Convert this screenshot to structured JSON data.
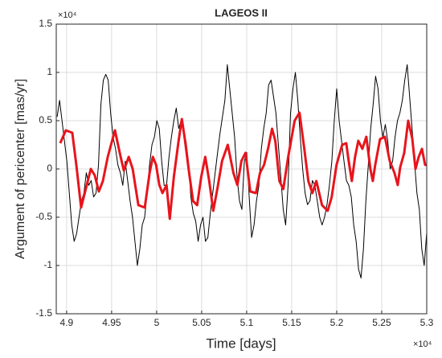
{
  "chart_data": {
    "type": "line",
    "title": "LAGEOS II",
    "x_label": "Time [days]",
    "y_label": "Argument of pericenter  [mas/yr]",
    "x_multiplier": "×10⁴",
    "y_multiplier": "×10⁴",
    "grid": true,
    "xlim": [
      48885,
      53000
    ],
    "ylim": [
      -15000,
      15000
    ],
    "xticks": [
      {
        "value": 49000,
        "label": "4.9"
      },
      {
        "value": 49500,
        "label": "4.95"
      },
      {
        "value": 50000,
        "label": "5"
      },
      {
        "value": 50500,
        "label": "5.05"
      },
      {
        "value": 51000,
        "label": "5.1"
      },
      {
        "value": 51500,
        "label": "5.15"
      },
      {
        "value": 52000,
        "label": "5.2"
      },
      {
        "value": 52500,
        "label": "5.25"
      },
      {
        "value": 53000,
        "label": "5.3"
      }
    ],
    "yticks": [
      {
        "value": -15000,
        "label": "-1.5"
      },
      {
        "value": -10000,
        "label": "-1"
      },
      {
        "value": -5000,
        "label": "-0.5"
      },
      0,
      {
        "value": 5000,
        "label": "0.5"
      },
      {
        "value": 10000,
        "label": "1"
      },
      {
        "value": 15000,
        "label": "1.5"
      }
    ],
    "series": [
      {
        "color": "#000000",
        "width": 1,
        "x": [
          48895,
          48922,
          48949,
          48976,
          49003,
          49030,
          49057,
          49084,
          49111,
          49138,
          49165,
          49192,
          49219,
          49246,
          49273,
          49300,
          49327,
          49354,
          49381,
          49408,
          49435,
          49462,
          49489,
          49516,
          49543,
          49570,
          49597,
          49624,
          49651,
          49678,
          49705,
          49732,
          49759,
          49786,
          49813,
          49840,
          49867,
          49894,
          49921,
          49948,
          49975,
          50002,
          50029,
          50056,
          50083,
          50110,
          50137,
          50164,
          50191,
          50218,
          50245,
          50272,
          50299,
          50326,
          50353,
          50380,
          50407,
          50434,
          50461,
          50488,
          50515,
          50542,
          50569,
          50596,
          50623,
          50650,
          50677,
          50704,
          50731,
          50758,
          50785,
          50812,
          50839,
          50866,
          50893,
          50920,
          50947,
          50974,
          51001,
          51028,
          51055,
          51082,
          51109,
          51136,
          51163,
          51190,
          51217,
          51244,
          51271,
          51298,
          51325,
          51352,
          51379,
          51406,
          51433,
          51460,
          51487,
          51514,
          51541,
          51568,
          51595,
          51622,
          51649,
          51676,
          51703,
          51730,
          51757,
          51784,
          51811,
          51838,
          51865,
          51892,
          51919,
          51946,
          51973,
          52000,
          52027,
          52054,
          52081,
          52108,
          52135,
          52162,
          52189,
          52216,
          52243,
          52270,
          52297,
          52324,
          52351,
          52378,
          52405,
          52432,
          52459,
          52486,
          52513,
          52540,
          52567,
          52594,
          52621,
          52648,
          52675,
          52702,
          52729,
          52756,
          52783,
          52810,
          52837,
          52864,
          52891,
          52918,
          52945,
          52972,
          52999
        ],
        "values": [
          5400,
          7100,
          5000,
          2900,
          800,
          -2500,
          -5800,
          -7500,
          -6700,
          -5000,
          -3300,
          -2500,
          -400,
          -1700,
          -1200,
          -2900,
          -2500,
          400,
          6700,
          9200,
          9800,
          9200,
          5800,
          3300,
          2100,
          400,
          -400,
          -1700,
          800,
          -1200,
          -3300,
          -5000,
          -7500,
          -10000,
          -8300,
          -5800,
          -5000,
          -2500,
          400,
          2500,
          3300,
          5000,
          4200,
          800,
          -1700,
          -1700,
          1200,
          3300,
          5000,
          6300,
          4200,
          5000,
          3700,
          2900,
          800,
          -2900,
          -4600,
          -5400,
          -7500,
          -5800,
          -5000,
          -7500,
          -7100,
          -4600,
          -2500,
          -400,
          1700,
          3700,
          5400,
          7100,
          10800,
          8300,
          5800,
          3300,
          -800,
          -3300,
          -4200,
          800,
          1700,
          -2900,
          -7100,
          -5800,
          -3300,
          -1700,
          2100,
          4200,
          5800,
          8700,
          9200,
          7500,
          5800,
          2500,
          -800,
          -4200,
          -5800,
          -1700,
          5800,
          8300,
          10000,
          7100,
          3300,
          0,
          -2500,
          -3700,
          -3300,
          -1200,
          -1700,
          -3300,
          -5000,
          -5800,
          -5000,
          -3700,
          -1700,
          800,
          5000,
          8300,
          5000,
          2900,
          800,
          -1200,
          -1700,
          -2900,
          -5800,
          -7500,
          -10400,
          -11300,
          -8300,
          -3300,
          400,
          4200,
          6700,
          9600,
          8300,
          5000,
          3300,
          4600,
          2900,
          0,
          800,
          3300,
          5000,
          5800,
          7100,
          9200,
          10800,
          7500,
          4200,
          800,
          -2500,
          -4200,
          -8300,
          -10000,
          -6700
        ]
      },
      {
        "color": "#e8141c",
        "width": 3,
        "x": [
          48929,
          48991,
          49063,
          49108,
          49161,
          49224,
          49269,
          49313,
          49358,
          49403,
          49457,
          49537,
          49600,
          49636,
          49690,
          49734,
          49797,
          49868,
          49922,
          49958,
          49994,
          50030,
          50065,
          50110,
          50146,
          50191,
          50244,
          50280,
          50316,
          50361,
          50405,
          50450,
          50495,
          50540,
          50584,
          50629,
          50674,
          50727,
          50790,
          50853,
          50897,
          50942,
          50987,
          51040,
          51103,
          51148,
          51193,
          51237,
          51282,
          51318,
          51363,
          51407,
          51461,
          51533,
          51587,
          51640,
          51685,
          51730,
          51774,
          51837,
          51900,
          51944,
          51998,
          52061,
          52106,
          52133,
          52168,
          52204,
          52240,
          52285,
          52329,
          52374,
          52401,
          52428,
          52481,
          52535,
          52589,
          52642,
          52678,
          52705,
          52750,
          52794,
          52839,
          52875,
          52911,
          52947,
          52982,
          53000
        ],
        "values": [
          2667,
          4000,
          3750,
          417,
          -4000,
          -1667,
          0,
          -667,
          -2333,
          -1250,
          1250,
          4000,
          1250,
          -167,
          1250,
          0,
          -3750,
          -4000,
          -417,
          1250,
          417,
          -1667,
          -2500,
          -1667,
          -5167,
          -833,
          2917,
          5167,
          2917,
          -417,
          -3333,
          -3750,
          -833,
          1250,
          -1250,
          -4333,
          -2083,
          833,
          2500,
          -417,
          -1667,
          833,
          1667,
          -2333,
          -2500,
          -417,
          417,
          2083,
          4167,
          2917,
          -1250,
          -2083,
          1250,
          5000,
          5833,
          2083,
          -1250,
          -2500,
          -1250,
          -3750,
          -4333,
          -2917,
          417,
          2500,
          2667,
          833,
          -1250,
          1250,
          2917,
          2083,
          3333,
          0,
          -1250,
          417,
          3083,
          3333,
          833,
          -417,
          -1667,
          167,
          1667,
          5000,
          3167,
          0,
          1250,
          2083,
          417,
          417
        ]
      }
    ]
  }
}
